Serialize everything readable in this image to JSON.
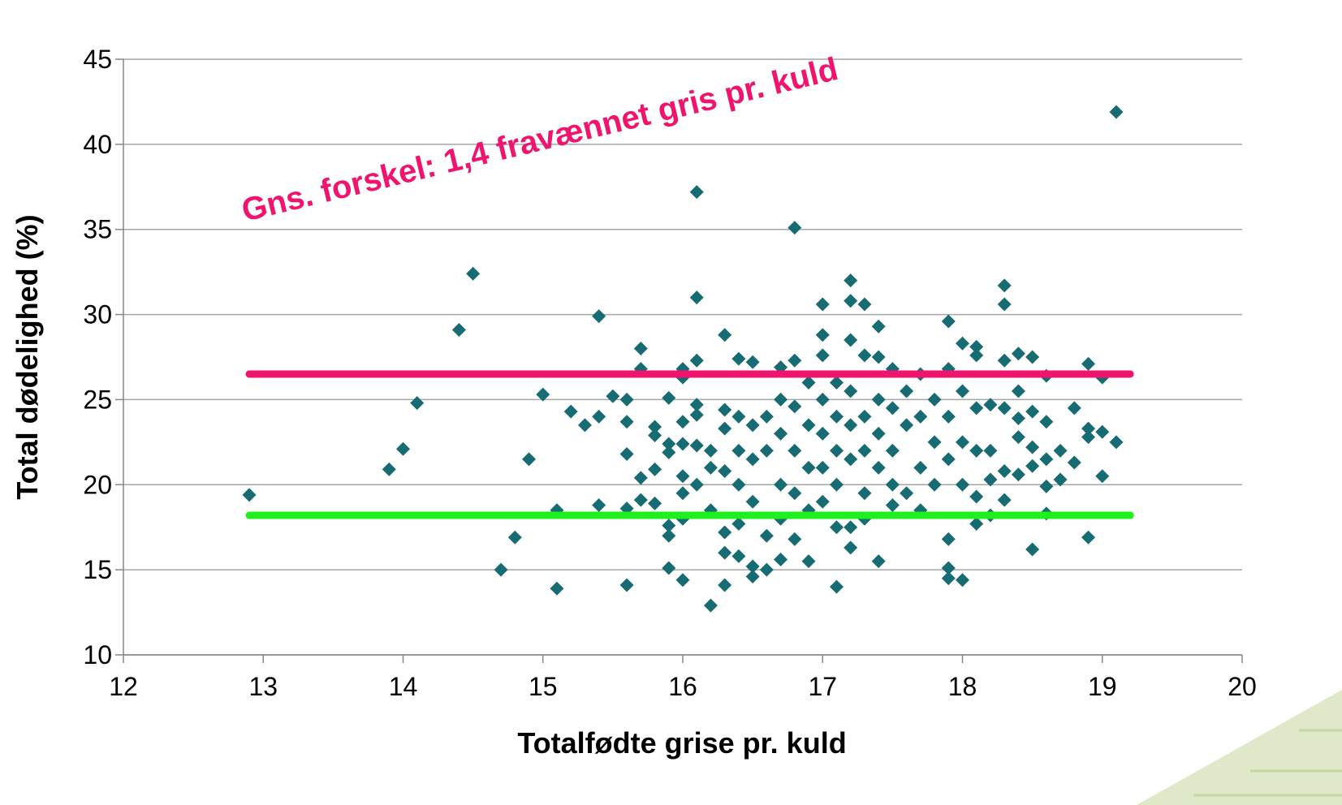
{
  "chart_data": {
    "type": "scatter",
    "xlabel": "Totalfødte grise pr. kuld",
    "ylabel": "Total dødelighed (%)",
    "annotation": "Gns. forskel: 1,4 fravænnet gris pr. kuld",
    "annotation_color": "#f0146e",
    "xlim": [
      12,
      20
    ],
    "xticks": [
      12,
      13,
      14,
      15,
      16,
      17,
      18,
      19,
      20
    ],
    "ylim": [
      10,
      45
    ],
    "yticks": [
      10,
      15,
      20,
      25,
      30,
      35,
      40,
      45
    ],
    "grid": true,
    "points": {
      "color": "#176b73",
      "x": [
        12.9,
        13.9,
        14.0,
        14.1,
        14.4,
        14.5,
        14.7,
        14.8,
        14.9,
        15.0,
        15.1,
        15.1,
        15.2,
        15.3,
        15.4,
        15.4,
        15.4,
        15.5,
        15.6,
        15.6,
        15.6,
        15.6,
        15.6,
        15.7,
        15.7,
        15.7,
        15.7,
        15.8,
        15.8,
        15.8,
        15.8,
        15.9,
        15.9,
        15.9,
        15.9,
        15.9,
        15.9,
        16.0,
        16.0,
        16.0,
        16.0,
        16.0,
        16.0,
        16.0,
        16.0,
        16.1,
        16.1,
        16.1,
        16.1,
        16.1,
        16.1,
        16.1,
        16.2,
        16.2,
        16.2,
        16.2,
        16.3,
        16.3,
        16.3,
        16.3,
        16.3,
        16.3,
        16.3,
        16.4,
        16.4,
        16.4,
        16.4,
        16.4,
        16.4,
        16.5,
        16.5,
        16.5,
        16.5,
        16.5,
        16.5,
        16.6,
        16.6,
        16.6,
        16.6,
        16.7,
        16.7,
        16.7,
        16.7,
        16.7,
        16.7,
        16.8,
        16.8,
        16.8,
        16.8,
        16.8,
        16.8,
        16.9,
        16.9,
        16.9,
        16.9,
        16.9,
        17.0,
        17.0,
        17.0,
        17.0,
        17.0,
        17.0,
        17.0,
        17.1,
        17.1,
        17.1,
        17.1,
        17.1,
        17.1,
        17.2,
        17.2,
        17.2,
        17.2,
        17.2,
        17.2,
        17.2,
        17.2,
        17.3,
        17.3,
        17.3,
        17.3,
        17.3,
        17.3,
        17.4,
        17.4,
        17.4,
        17.4,
        17.4,
        17.4,
        17.5,
        17.5,
        17.5,
        17.5,
        17.5,
        17.6,
        17.6,
        17.6,
        17.7,
        17.7,
        17.7,
        17.7,
        17.8,
        17.8,
        17.8,
        17.9,
        17.9,
        17.9,
        17.9,
        17.9,
        17.9,
        17.9,
        18.0,
        18.0,
        18.0,
        18.0,
        18.0,
        18.1,
        18.1,
        18.1,
        18.1,
        18.1,
        18.1,
        18.2,
        18.2,
        18.2,
        18.2,
        18.3,
        18.3,
        18.3,
        18.3,
        18.3,
        18.3,
        18.4,
        18.4,
        18.4,
        18.4,
        18.4,
        18.5,
        18.5,
        18.5,
        18.5,
        18.5,
        18.6,
        18.6,
        18.6,
        18.6,
        18.6,
        18.7,
        18.7,
        18.8,
        18.8,
        18.9,
        18.9,
        18.9,
        18.9,
        19.0,
        19.0,
        19.0,
        19.1,
        19.1
      ],
      "values": [
        19.4,
        20.9,
        22.1,
        24.8,
        29.1,
        32.4,
        15.0,
        16.9,
        21.5,
        25.3,
        13.9,
        18.5,
        24.3,
        23.5,
        24.0,
        29.9,
        18.8,
        25.2,
        25.0,
        23.7,
        21.8,
        18.6,
        14.1,
        28.0,
        26.8,
        20.4,
        19.1,
        23.4,
        22.9,
        20.9,
        18.9,
        25.1,
        22.4,
        21.9,
        17.6,
        17.0,
        15.1,
        26.8,
        26.3,
        23.7,
        22.4,
        20.5,
        19.5,
        18.0,
        14.4,
        37.2,
        31.0,
        27.3,
        24.7,
        24.1,
        22.3,
        20.0,
        21.0,
        22.0,
        18.5,
        12.9,
        28.8,
        24.4,
        23.3,
        20.8,
        17.2,
        16.0,
        14.1,
        27.4,
        24.0,
        22.0,
        20.0,
        17.7,
        15.8,
        27.2,
        23.5,
        21.5,
        19.0,
        15.2,
        14.6,
        24.0,
        22.0,
        17.0,
        15.0,
        26.9,
        25.0,
        23.0,
        20.0,
        18.0,
        15.6,
        35.1,
        27.3,
        24.6,
        22.0,
        19.5,
        16.8,
        26.0,
        23.5,
        21.0,
        18.5,
        15.5,
        30.6,
        28.8,
        27.6,
        25.0,
        23.0,
        21.0,
        19.0,
        26.0,
        24.0,
        22.0,
        20.0,
        17.5,
        14.0,
        32.0,
        30.8,
        28.5,
        25.5,
        23.5,
        21.5,
        17.5,
        16.3,
        30.6,
        27.6,
        24.0,
        22.0,
        19.5,
        18.0,
        29.3,
        27.5,
        25.0,
        23.0,
        21.0,
        15.5,
        26.8,
        24.5,
        22.0,
        20.0,
        18.8,
        25.5,
        23.5,
        19.5,
        26.5,
        24.0,
        21.0,
        18.5,
        25.0,
        22.5,
        20.0,
        29.6,
        26.8,
        24.0,
        21.5,
        16.8,
        15.1,
        14.5,
        28.3,
        25.5,
        22.5,
        20.0,
        14.4,
        28.1,
        27.6,
        24.5,
        22.0,
        19.3,
        17.7,
        24.7,
        22.0,
        20.3,
        18.2,
        31.7,
        30.6,
        27.3,
        24.5,
        20.8,
        19.1,
        27.7,
        25.5,
        23.9,
        22.8,
        20.6,
        27.5,
        24.3,
        22.2,
        21.1,
        16.2,
        26.4,
        23.7,
        21.5,
        19.9,
        18.3,
        22.0,
        20.3,
        24.5,
        21.3,
        27.1,
        23.3,
        22.8,
        16.9,
        26.3,
        23.1,
        20.5,
        41.9,
        22.5
      ]
    },
    "lines": [
      {
        "color": "#f0146e",
        "x": [
          12.9,
          19.2
        ],
        "values": [
          26.5,
          26.5
        ]
      },
      {
        "color": "#1ef01e",
        "x": [
          12.9,
          19.2
        ],
        "values": [
          18.2,
          18.2
        ]
      }
    ]
  }
}
